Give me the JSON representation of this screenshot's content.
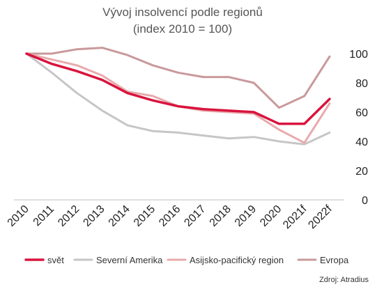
{
  "chart_data": {
    "type": "line",
    "title": "Vývoj insolvencí podle regionů",
    "subtitle": "(index 2010 = 100)",
    "categories": [
      "2010",
      "2011",
      "2012",
      "2013",
      "2014",
      "2015",
      "2016",
      "2017",
      "2018",
      "2019",
      "2020",
      "2021f",
      "2022f"
    ],
    "ylim": [
      0,
      100
    ],
    "yticks": [
      "0",
      "20",
      "40",
      "60",
      "80",
      "100"
    ],
    "y_axis_position": "right",
    "grid": false,
    "legend_position": "bottom",
    "source": "Zdroj: Atradius",
    "series": [
      {
        "name": "Evropa",
        "color": "#c9999b",
        "width": 3,
        "values": [
          100,
          100,
          103,
          104,
          99,
          92,
          87,
          84,
          84,
          80,
          63,
          71,
          98
        ]
      },
      {
        "name": "Severní Amerika",
        "color": "#c6c6c6",
        "width": 3,
        "values": [
          100,
          87,
          73,
          61,
          51,
          47,
          46,
          44,
          42,
          43,
          40,
          38,
          46
        ]
      },
      {
        "name": "Asijsko-pacifický region",
        "color": "#e8aaab",
        "width": 3,
        "values": [
          100,
          96,
          92,
          85,
          74,
          71,
          64,
          61,
          60,
          59,
          48,
          39,
          66
        ]
      },
      {
        "name": "svět",
        "color": "#d9143e",
        "width": 3.5,
        "values": [
          100,
          93,
          88,
          82,
          73,
          68,
          64,
          62,
          61,
          60,
          52,
          52,
          69
        ]
      }
    ],
    "legend_order": [
      "svět",
      "Severní Amerika",
      "Asijsko-pacifický region",
      "Evropa"
    ]
  }
}
